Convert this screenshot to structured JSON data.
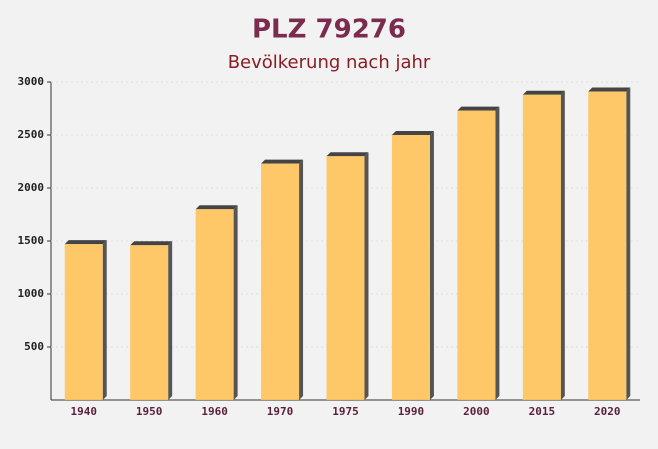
{
  "chart_data": {
    "type": "bar",
    "title": "PLZ 79276",
    "subtitle": "Bevölkerung nach jahr",
    "categories": [
      "1940",
      "1950",
      "1960",
      "1970",
      "1975",
      "1990",
      "2000",
      "2015",
      "2020"
    ],
    "values": [
      1470,
      1460,
      1800,
      2230,
      2300,
      2500,
      2730,
      2880,
      2910
    ],
    "color": "#ffc35a",
    "ylim": [
      0,
      3000
    ],
    "yticks": [
      500,
      1000,
      1500,
      2000,
      2500,
      3000
    ]
  }
}
